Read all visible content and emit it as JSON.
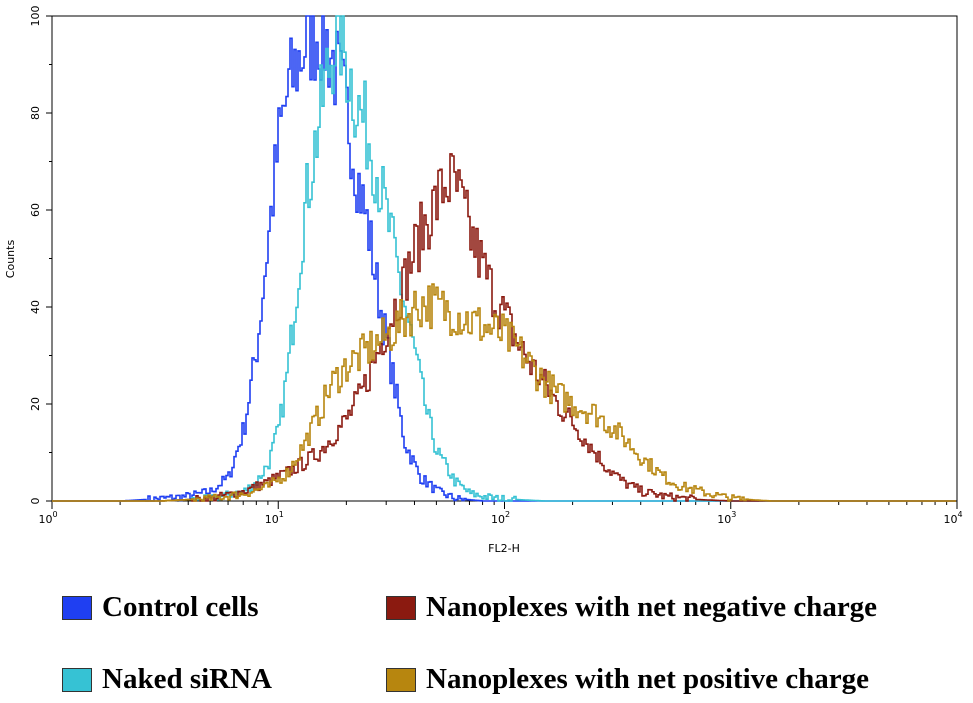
{
  "chart_data": {
    "type": "line",
    "subtype": "flow-cytometry-histogram",
    "xlabel": "FL2-H",
    "ylabel": "Counts",
    "xscale": "log",
    "xlim": [
      1,
      10000
    ],
    "ylim": [
      0,
      100
    ],
    "x_ticks": [
      {
        "base": "10",
        "exp": "0"
      },
      {
        "base": "10",
        "exp": "1"
      },
      {
        "base": "10",
        "exp": "2"
      },
      {
        "base": "10",
        "exp": "3"
      },
      {
        "base": "10",
        "exp": "4"
      }
    ],
    "y_ticks": [
      "0",
      "20",
      "40",
      "60",
      "80",
      "100"
    ],
    "y_tick_values": [
      0,
      20,
      40,
      60,
      80,
      100
    ],
    "legend_position": "bottom",
    "series": [
      {
        "name": "Control cells",
        "color": "#1f3ff2",
        "points": [
          [
            1,
            0
          ],
          [
            2,
            0
          ],
          [
            3,
            0.5
          ],
          [
            4,
            1
          ],
          [
            5,
            2
          ],
          [
            6,
            5
          ],
          [
            7,
            15
          ],
          [
            8,
            32
          ],
          [
            9,
            55
          ],
          [
            10,
            75
          ],
          [
            11,
            85
          ],
          [
            12,
            90
          ],
          [
            13,
            94
          ],
          [
            14,
            96
          ],
          [
            15,
            97
          ],
          [
            16,
            95
          ],
          [
            17,
            92
          ],
          [
            18,
            88
          ],
          [
            20,
            80
          ],
          [
            22,
            68
          ],
          [
            25,
            55
          ],
          [
            28,
            40
          ],
          [
            32,
            25
          ],
          [
            36,
            12
          ],
          [
            42,
            5
          ],
          [
            50,
            2
          ],
          [
            60,
            0.5
          ],
          [
            80,
            0
          ],
          [
            10000,
            0
          ]
        ]
      },
      {
        "name": "Naked siRNA",
        "color": "#36c2d4",
        "points": [
          [
            1,
            0
          ],
          [
            3,
            0
          ],
          [
            5,
            0.5
          ],
          [
            7,
            2
          ],
          [
            8,
            4
          ],
          [
            9,
            8
          ],
          [
            10,
            15
          ],
          [
            11,
            28
          ],
          [
            12,
            45
          ],
          [
            13,
            60
          ],
          [
            14,
            70
          ],
          [
            15,
            78
          ],
          [
            16,
            86
          ],
          [
            17,
            92
          ],
          [
            18,
            98
          ],
          [
            19,
            95
          ],
          [
            20,
            90
          ],
          [
            22,
            82
          ],
          [
            25,
            75
          ],
          [
            28,
            65
          ],
          [
            32,
            52
          ],
          [
            36,
            40
          ],
          [
            40,
            30
          ],
          [
            45,
            18
          ],
          [
            50,
            10
          ],
          [
            60,
            4
          ],
          [
            70,
            1.5
          ],
          [
            90,
            0.5
          ],
          [
            150,
            0
          ],
          [
            10000,
            0
          ]
        ]
      },
      {
        "name": "Nanoplexes with net negative charge",
        "color": "#8b1a10",
        "points": [
          [
            1,
            0
          ],
          [
            3,
            0
          ],
          [
            5,
            0.5
          ],
          [
            7,
            2
          ],
          [
            9,
            4
          ],
          [
            11,
            6
          ],
          [
            13,
            8
          ],
          [
            15,
            10
          ],
          [
            17,
            13
          ],
          [
            20,
            17
          ],
          [
            23,
            22
          ],
          [
            26,
            28
          ],
          [
            30,
            36
          ],
          [
            35,
            44
          ],
          [
            40,
            52
          ],
          [
            45,
            58
          ],
          [
            50,
            62
          ],
          [
            55,
            66
          ],
          [
            60,
            65
          ],
          [
            65,
            60
          ],
          [
            70,
            55
          ],
          [
            80,
            48
          ],
          [
            90,
            42
          ],
          [
            100,
            38
          ],
          [
            115,
            32
          ],
          [
            130,
            28
          ],
          [
            150,
            24
          ],
          [
            170,
            20
          ],
          [
            200,
            16
          ],
          [
            240,
            11
          ],
          [
            280,
            7
          ],
          [
            330,
            4
          ],
          [
            400,
            2
          ],
          [
            500,
            1
          ],
          [
            700,
            0.3
          ],
          [
            1000,
            0
          ],
          [
            10000,
            0
          ]
        ]
      },
      {
        "name": "Nanoplexes with net positive charge",
        "color": "#b7860f",
        "points": [
          [
            1,
            0
          ],
          [
            3,
            0
          ],
          [
            5,
            0.5
          ],
          [
            7,
            1.5
          ],
          [
            9,
            3
          ],
          [
            11,
            6
          ],
          [
            13,
            12
          ],
          [
            15,
            18
          ],
          [
            17,
            24
          ],
          [
            20,
            28
          ],
          [
            23,
            30
          ],
          [
            26,
            32
          ],
          [
            30,
            34
          ],
          [
            35,
            37
          ],
          [
            40,
            40
          ],
          [
            45,
            41
          ],
          [
            50,
            40
          ],
          [
            60,
            39
          ],
          [
            70,
            37
          ],
          [
            80,
            36
          ],
          [
            100,
            34
          ],
          [
            120,
            30
          ],
          [
            140,
            26
          ],
          [
            170,
            22
          ],
          [
            200,
            20
          ],
          [
            250,
            18
          ],
          [
            300,
            15
          ],
          [
            350,
            12
          ],
          [
            400,
            9
          ],
          [
            500,
            5
          ],
          [
            600,
            3
          ],
          [
            800,
            1.5
          ],
          [
            1000,
            0.5
          ],
          [
            1500,
            0
          ],
          [
            10000,
            0
          ]
        ]
      }
    ]
  }
}
